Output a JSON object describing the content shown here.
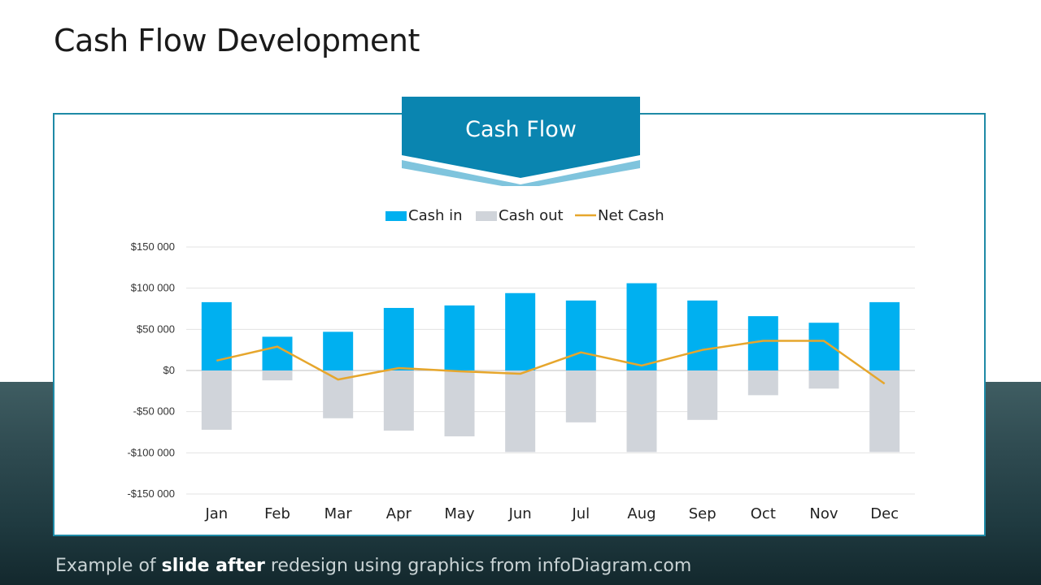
{
  "slide": {
    "title": "Cash Flow Development",
    "banner_label": "Cash Flow",
    "footer": {
      "prefix": "Example of ",
      "bold": "slide after",
      "suffix": " redesign using graphics from infoDiagram.com"
    }
  },
  "colors": {
    "cash_in": "#00b0f0",
    "cash_out": "#d0d4da",
    "net_cash": "#e6a62c",
    "banner_dark": "#0a85b0",
    "banner_light": "#7fc4dd",
    "panel_border": "#1e8aa6"
  },
  "chart_data": {
    "type": "bar",
    "categories": [
      "Jan",
      "Feb",
      "Mar",
      "Apr",
      "May",
      "Jun",
      "Jul",
      "Aug",
      "Sep",
      "Oct",
      "Nov",
      "Dec"
    ],
    "series": [
      {
        "name": "Cash in",
        "type": "bar",
        "values": [
          83000,
          41000,
          47000,
          76000,
          79000,
          94000,
          85000,
          106000,
          85000,
          66000,
          58000,
          83000
        ]
      },
      {
        "name": "Cash out",
        "type": "bar",
        "values": [
          -72000,
          -12000,
          -58000,
          -73000,
          -80000,
          -99000,
          -63000,
          -99000,
          -60000,
          -30000,
          -22000,
          -99000
        ]
      },
      {
        "name": "Net Cash",
        "type": "line",
        "values": [
          12000,
          29000,
          -11000,
          3000,
          -1000,
          -4000,
          22000,
          6000,
          25000,
          36000,
          36000,
          -16000
        ]
      }
    ],
    "yticks": [
      "$150 000",
      "$100 000",
      "$50 000",
      "$0",
      "-$50 000",
      "-$100 000",
      "-$150 000"
    ],
    "ytick_values": [
      150000,
      100000,
      50000,
      0,
      -50000,
      -100000,
      -150000
    ],
    "ylim": [
      -150000,
      150000
    ],
    "grid": true,
    "legend_position": "top-center"
  }
}
